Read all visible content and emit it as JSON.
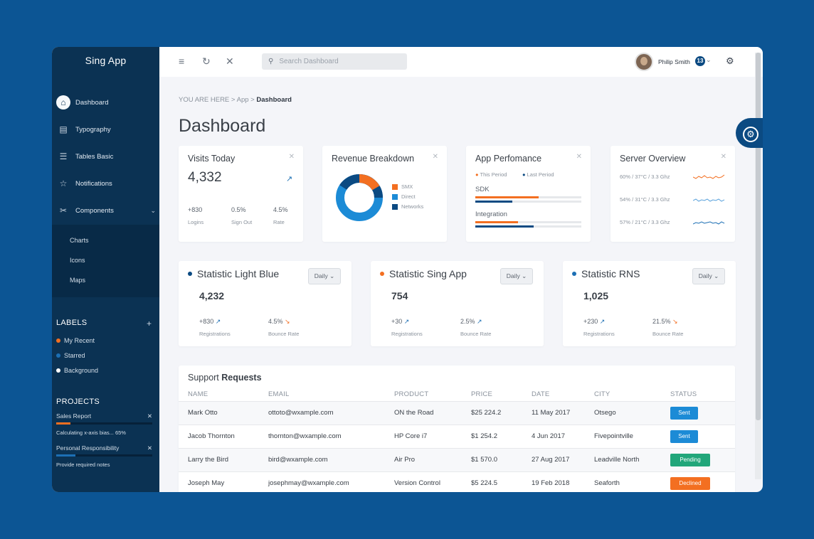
{
  "app": {
    "name": "Sing App"
  },
  "sidebar": {
    "items": [
      {
        "label": "Dashboard",
        "icon": "home-icon"
      },
      {
        "label": "Typography",
        "icon": "document-icon"
      },
      {
        "label": "Tables Basic",
        "icon": "table-icon"
      },
      {
        "label": "Notifications",
        "icon": "star-icon"
      },
      {
        "label": "Components",
        "icon": "tools-icon"
      }
    ],
    "sub_items": [
      "Charts",
      "Icons",
      "Maps"
    ],
    "labels_title": "LABELS",
    "labels": [
      {
        "label": "My Recent",
        "color": "#f36f21"
      },
      {
        "label": "Starred",
        "color": "#1c6fb4"
      },
      {
        "label": "Background",
        "color": "#ffffff"
      }
    ],
    "projects_title": "PROJECTS",
    "projects": [
      {
        "name": "Sales Report",
        "note": "Calculating x-axis bias... 65%",
        "progress": 0.15,
        "color": "#f36f21"
      },
      {
        "name": "Personal Responsibility",
        "note": "Provide required notes",
        "progress": 0.2,
        "color": "#1c6fb4"
      }
    ]
  },
  "topbar": {
    "search_placeholder": "Search Dashboard",
    "user_name": "Philip Smith",
    "notifications": "13"
  },
  "breadcrumb": {
    "prefix": "YOU ARE HERE",
    "sep": ">",
    "app": "App",
    "current": "Dashboard"
  },
  "page_title": "Dashboard",
  "cards": {
    "visits": {
      "title": "Visits Today",
      "value": "4,332",
      "stats": [
        {
          "value": "+830",
          "label": "Logins"
        },
        {
          "value": "0.5%",
          "label": "Sign Out"
        },
        {
          "value": "4.5%",
          "label": "Rate"
        }
      ]
    },
    "revenue": {
      "title": "Revenue Breakdown",
      "legend": [
        {
          "label": "SMX",
          "color": "#f36f21"
        },
        {
          "label": "Direct",
          "color": "#1c8bd6"
        },
        {
          "label": "Networks",
          "color": "#0b4a82"
        }
      ]
    },
    "performance": {
      "title": "App Perfomance",
      "this_period": "This Period",
      "last_period": "Last Period",
      "rows": [
        {
          "label": "SDK",
          "this": 0.6,
          "last": 0.35
        },
        {
          "label": "Integration",
          "this": 0.4,
          "last": 0.55
        }
      ]
    },
    "server": {
      "title": "Server Overview",
      "rows": [
        {
          "label": "60% / 37°C / 3.3 Ghz",
          "color": "#f36f21"
        },
        {
          "label": "54% / 31°C / 3.3 Ghz",
          "color": "#5aa2dc"
        },
        {
          "label": "57% / 21°C / 3.3 Ghz",
          "color": "#1c6fb4"
        }
      ]
    }
  },
  "stats": [
    {
      "title": "Statistic Light Blue",
      "dot": "#0b4a82",
      "value": "4,232",
      "reg": "+830",
      "reg_label": "Registrations",
      "bounce": "4.5%",
      "bounce_label": "Bounce Rate",
      "period": "Daily"
    },
    {
      "title": "Statistic Sing App",
      "dot": "#f36f21",
      "value": "754",
      "reg": "+30",
      "reg_label": "Registrations",
      "bounce": "2.5%",
      "bounce_label": "Bounce Rate",
      "period": "Daily"
    },
    {
      "title": "Statistic RNS",
      "dot": "#1c6fb4",
      "value": "1,025",
      "reg": "+230",
      "reg_label": "Registrations",
      "bounce": "21.5%",
      "bounce_label": "Bounce Rate",
      "period": "Daily"
    }
  ],
  "support": {
    "title_plain": "Support",
    "title_bold": "Requests",
    "columns": [
      "NAME",
      "EMAIL",
      "PRODUCT",
      "PRICE",
      "DATE",
      "CITY",
      "STATUS"
    ],
    "rows": [
      {
        "name": "Mark Otto",
        "email": "ottoto@wxample.com",
        "product": "ON the Road",
        "price": "$25 224.2",
        "date": "11 May 2017",
        "city": "Otsego",
        "status": "Sent",
        "color": "#1c8bd6"
      },
      {
        "name": "Jacob Thornton",
        "email": "thornton@wxample.com",
        "product": "HP Core i7",
        "price": "$1 254.2",
        "date": "4 Jun 2017",
        "city": "Fivepointville",
        "status": "Sent",
        "color": "#1c8bd6"
      },
      {
        "name": "Larry the Bird",
        "email": "bird@wxample.com",
        "product": "Air Pro",
        "price": "$1 570.0",
        "date": "27 Aug 2017",
        "city": "Leadville North",
        "status": "Pending",
        "color": "#21a67a"
      },
      {
        "name": "Joseph May",
        "email": "josephmay@wxample.com",
        "product": "Version Control",
        "price": "$5 224.5",
        "date": "19 Feb 2018",
        "city": "Seaforth",
        "status": "Declined",
        "color": "#f36f21"
      }
    ]
  }
}
